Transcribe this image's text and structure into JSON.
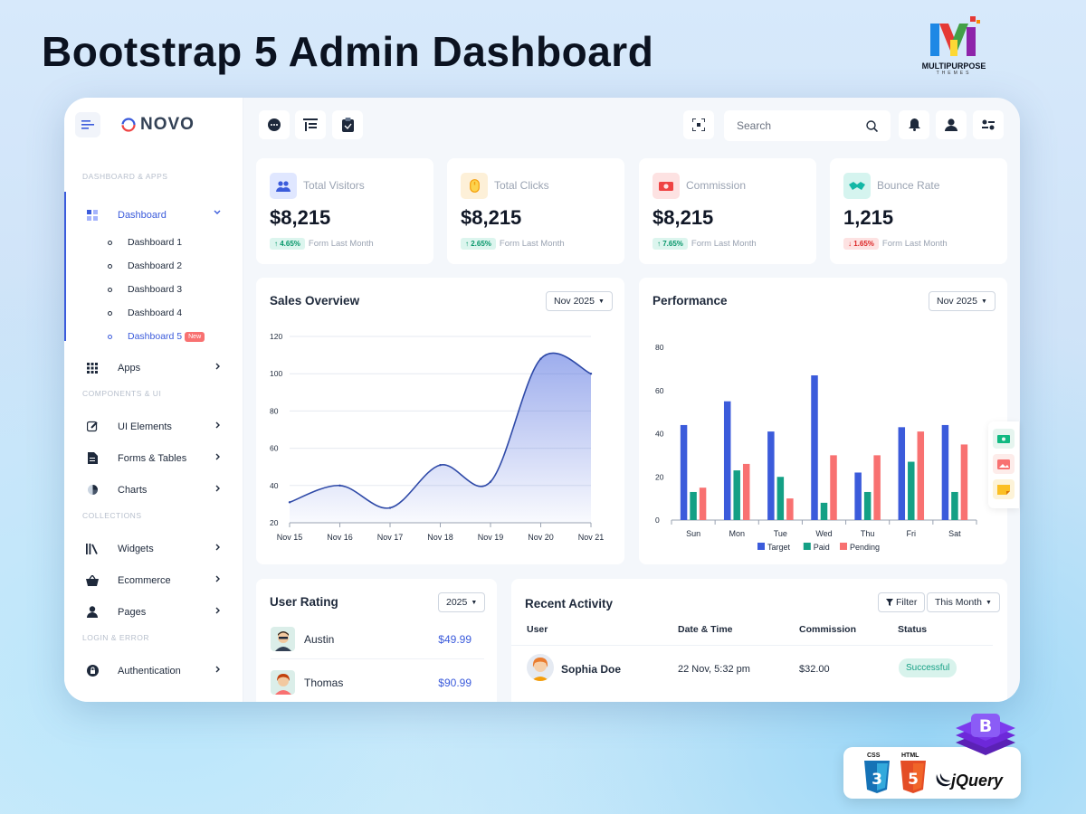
{
  "hero": {
    "title": "Bootstrap 5 Admin Dashboard"
  },
  "brand": {
    "line1": "MULTIPURPOSE",
    "line2": "THEMES"
  },
  "app": {
    "logo_text": "NOVO"
  },
  "sidebar": {
    "sections": [
      "DASHBOARD & APPS",
      "COMPONENTS & UI",
      "COLLECTIONS",
      "LOGIN & ERROR"
    ],
    "dashboard_label": "Dashboard",
    "sub_items": [
      "Dashboard 1",
      "Dashboard 2",
      "Dashboard 3",
      "Dashboard 4",
      "Dashboard 5"
    ],
    "new_badge": "New",
    "items": [
      "Apps",
      "UI Elements",
      "Forms & Tables",
      "Charts",
      "Widgets",
      "Ecommerce",
      "Pages",
      "Authentication"
    ]
  },
  "search": {
    "placeholder": "Search"
  },
  "stats": [
    {
      "label": "Total Visitors",
      "value": "$8,215",
      "change": "↑ 4.65%",
      "note": "Form Last Month",
      "color": "#3b5bdb",
      "icon": "users-icon"
    },
    {
      "label": "Total Clicks",
      "value": "$8,215",
      "change": "↑ 2.65%",
      "note": "Form Last Month",
      "color": "#f59e0b",
      "icon": "mouse-icon"
    },
    {
      "label": "Commission",
      "value": "$8,215",
      "change": "↑ 7.65%",
      "note": "Form Last Month",
      "color": "#ef4444",
      "icon": "money-icon"
    },
    {
      "label": "Bounce Rate",
      "value": "1,215",
      "change": "↓ 1.65%",
      "note": "Form Last Month",
      "color": "#14b8a6",
      "icon": "handshake-icon"
    }
  ],
  "sales": {
    "title": "Sales Overview",
    "period": "Nov 2025"
  },
  "performance": {
    "title": "Performance",
    "period": "Nov 2025"
  },
  "rating": {
    "title": "User Rating",
    "year": "2025",
    "users": [
      {
        "name": "Austin",
        "price": "$49.99"
      },
      {
        "name": "Thomas",
        "price": "$90.99"
      }
    ]
  },
  "activity": {
    "title": "Recent Activity",
    "filter": "Filter",
    "range": "This Month",
    "headers": [
      "User",
      "Date & Time",
      "Commission",
      "Status"
    ],
    "rows": [
      {
        "user": "Sophia Doe",
        "date": "22 Nov, 5:32 pm",
        "commission": "$32.00",
        "status": "Successful"
      }
    ]
  },
  "tech": {
    "css": "CSS",
    "html": "HTML",
    "jquery": "jQuery"
  },
  "chart_data": [
    {
      "type": "area",
      "x": [
        "Nov 15",
        "Nov 16",
        "Nov 17",
        "Nov 18",
        "Nov 19",
        "Nov 20",
        "Nov 21"
      ],
      "values": [
        31,
        40,
        28,
        51,
        42,
        108,
        100
      ],
      "ylim": [
        20,
        120
      ],
      "yticks": [
        20,
        40,
        60,
        80,
        100,
        120
      ],
      "color": "#3b5bdb"
    },
    {
      "type": "bar",
      "categories": [
        "Sun",
        "Mon",
        "Tue",
        "Wed",
        "Thu",
        "Fri",
        "Sat"
      ],
      "series": [
        {
          "name": "Target",
          "values": [
            44,
            55,
            41,
            67,
            22,
            43,
            44
          ],
          "color": "#3b5bdb"
        },
        {
          "name": "Paid",
          "values": [
            13,
            23,
            20,
            8,
            13,
            27,
            13
          ],
          "color": "#14a085"
        },
        {
          "name": "Pending",
          "values": [
            15,
            26,
            10,
            30,
            30,
            41,
            35
          ],
          "color": "#f87171"
        }
      ],
      "ylim": [
        0,
        80
      ],
      "yticks": [
        0,
        20,
        40,
        60,
        80
      ],
      "legend": "bottom"
    }
  ]
}
